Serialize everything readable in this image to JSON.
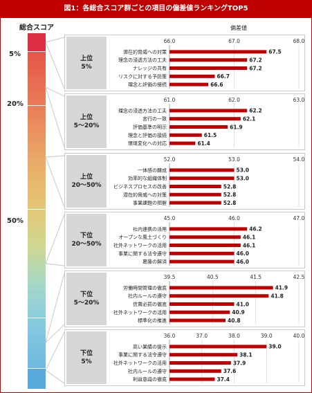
{
  "title": "図1：各総合スコア群ごとの項目の偏差値ランキングTOP5",
  "score_axis_label": "総合スコア",
  "hensachi_label": "偏差値",
  "percent_markers": [
    "5%",
    "20%",
    "50%"
  ],
  "colors": {
    "bar": "#c00000",
    "title_bg": "#c00000",
    "rank_box": "#d6d6d6",
    "gradient": [
      "#dc2f43",
      "#e55649",
      "#ea7c58",
      "#e9a867",
      "#e4c778",
      "#cfd790",
      "#a8d8c4",
      "#89cce0",
      "#6fb9e0",
      "#5aa9dc"
    ]
  },
  "chart_data": [
    {
      "type": "bar",
      "group": "上位\n5%",
      "xlim": [
        66.0,
        68.0
      ],
      "ticks": [
        "66.0",
        "67.0",
        "68.0"
      ],
      "categories": [
        "潜在的脅威への対策",
        "理念の浸透方法の工夫",
        "ナレッジの共有",
        "リスクに対する予防策",
        "理念と評価の接続"
      ],
      "values": [
        67.5,
        67.2,
        67.2,
        66.7,
        66.6
      ],
      "labels": [
        "67.5",
        "67.2",
        "67.2",
        "66.7",
        "66.6"
      ]
    },
    {
      "type": "bar",
      "group": "上位\n5〜20%",
      "xlim": [
        61.0,
        63.0
      ],
      "ticks": [
        "61.0",
        "62.0",
        "63.0"
      ],
      "categories": [
        "理念の浸透方法の工夫",
        "言行の一致",
        "評価基準の明示",
        "理念と評価の接続",
        "環境変化への対応"
      ],
      "values": [
        62.2,
        62.1,
        61.9,
        61.5,
        61.4
      ],
      "labels": [
        "62.2",
        "62.1",
        "61.9",
        "61.5",
        "61.4"
      ]
    },
    {
      "type": "bar",
      "group": "上位\n20〜50%",
      "xlim": [
        52.0,
        54.0
      ],
      "ticks": [
        "52.0",
        "53.0",
        "54.0"
      ],
      "categories": [
        "一体感の醸成",
        "効率的な組織体制",
        "ビジネスプロセスの改善",
        "潜在的脅威への対策",
        "事業課題の把握"
      ],
      "values": [
        53.0,
        53.0,
        52.8,
        52.8,
        52.8
      ],
      "labels": [
        "53.0",
        "53.0",
        "52.8",
        "52.8",
        "52.8"
      ]
    },
    {
      "type": "bar",
      "group": "下位\n20〜50%",
      "xlim": [
        45.0,
        47.0
      ],
      "ticks": [
        "45.0",
        "46.0",
        "47.0"
      ],
      "categories": [
        "社内連携の活用",
        "オープンな風土づくり",
        "社外ネットワークの活用",
        "事業に関する法令遵守",
        "葛藤の解消"
      ],
      "values": [
        46.2,
        46.1,
        46.1,
        46.0,
        46.0
      ],
      "labels": [
        "46.2",
        "46.1",
        "46.1",
        "46.0",
        "46.0"
      ]
    },
    {
      "type": "bar",
      "group": "下位\n5〜20%",
      "xlim": [
        39.5,
        42.5
      ],
      "ticks": [
        "39.5",
        "40.5",
        "41.5",
        "42.5"
      ],
      "categories": [
        "労働時間管理の徹底",
        "社内ルールの遵守",
        "信賞必罰の徹底",
        "社外ネットワークの活用",
        "標準化の推進"
      ],
      "values": [
        41.9,
        41.8,
        41.0,
        40.9,
        40.8
      ],
      "labels": [
        "41.9",
        "41.8",
        "41.0",
        "40.9",
        "40.8"
      ]
    },
    {
      "type": "bar",
      "group": "下位\n5%",
      "xlim": [
        36.0,
        40.0
      ],
      "ticks": [
        "36.0",
        "37.0",
        "38.0",
        "39.0",
        "40.0"
      ],
      "categories": [
        "高い業績の提示",
        "事業に関する法令遵守",
        "社外ネットワークの活用",
        "社内ルールの遵守",
        "利益意識の徹底"
      ],
      "values": [
        39.0,
        38.1,
        37.9,
        37.6,
        37.4
      ],
      "labels": [
        "39.0",
        "38.1",
        "37.9",
        "37.6",
        "37.4"
      ]
    }
  ]
}
